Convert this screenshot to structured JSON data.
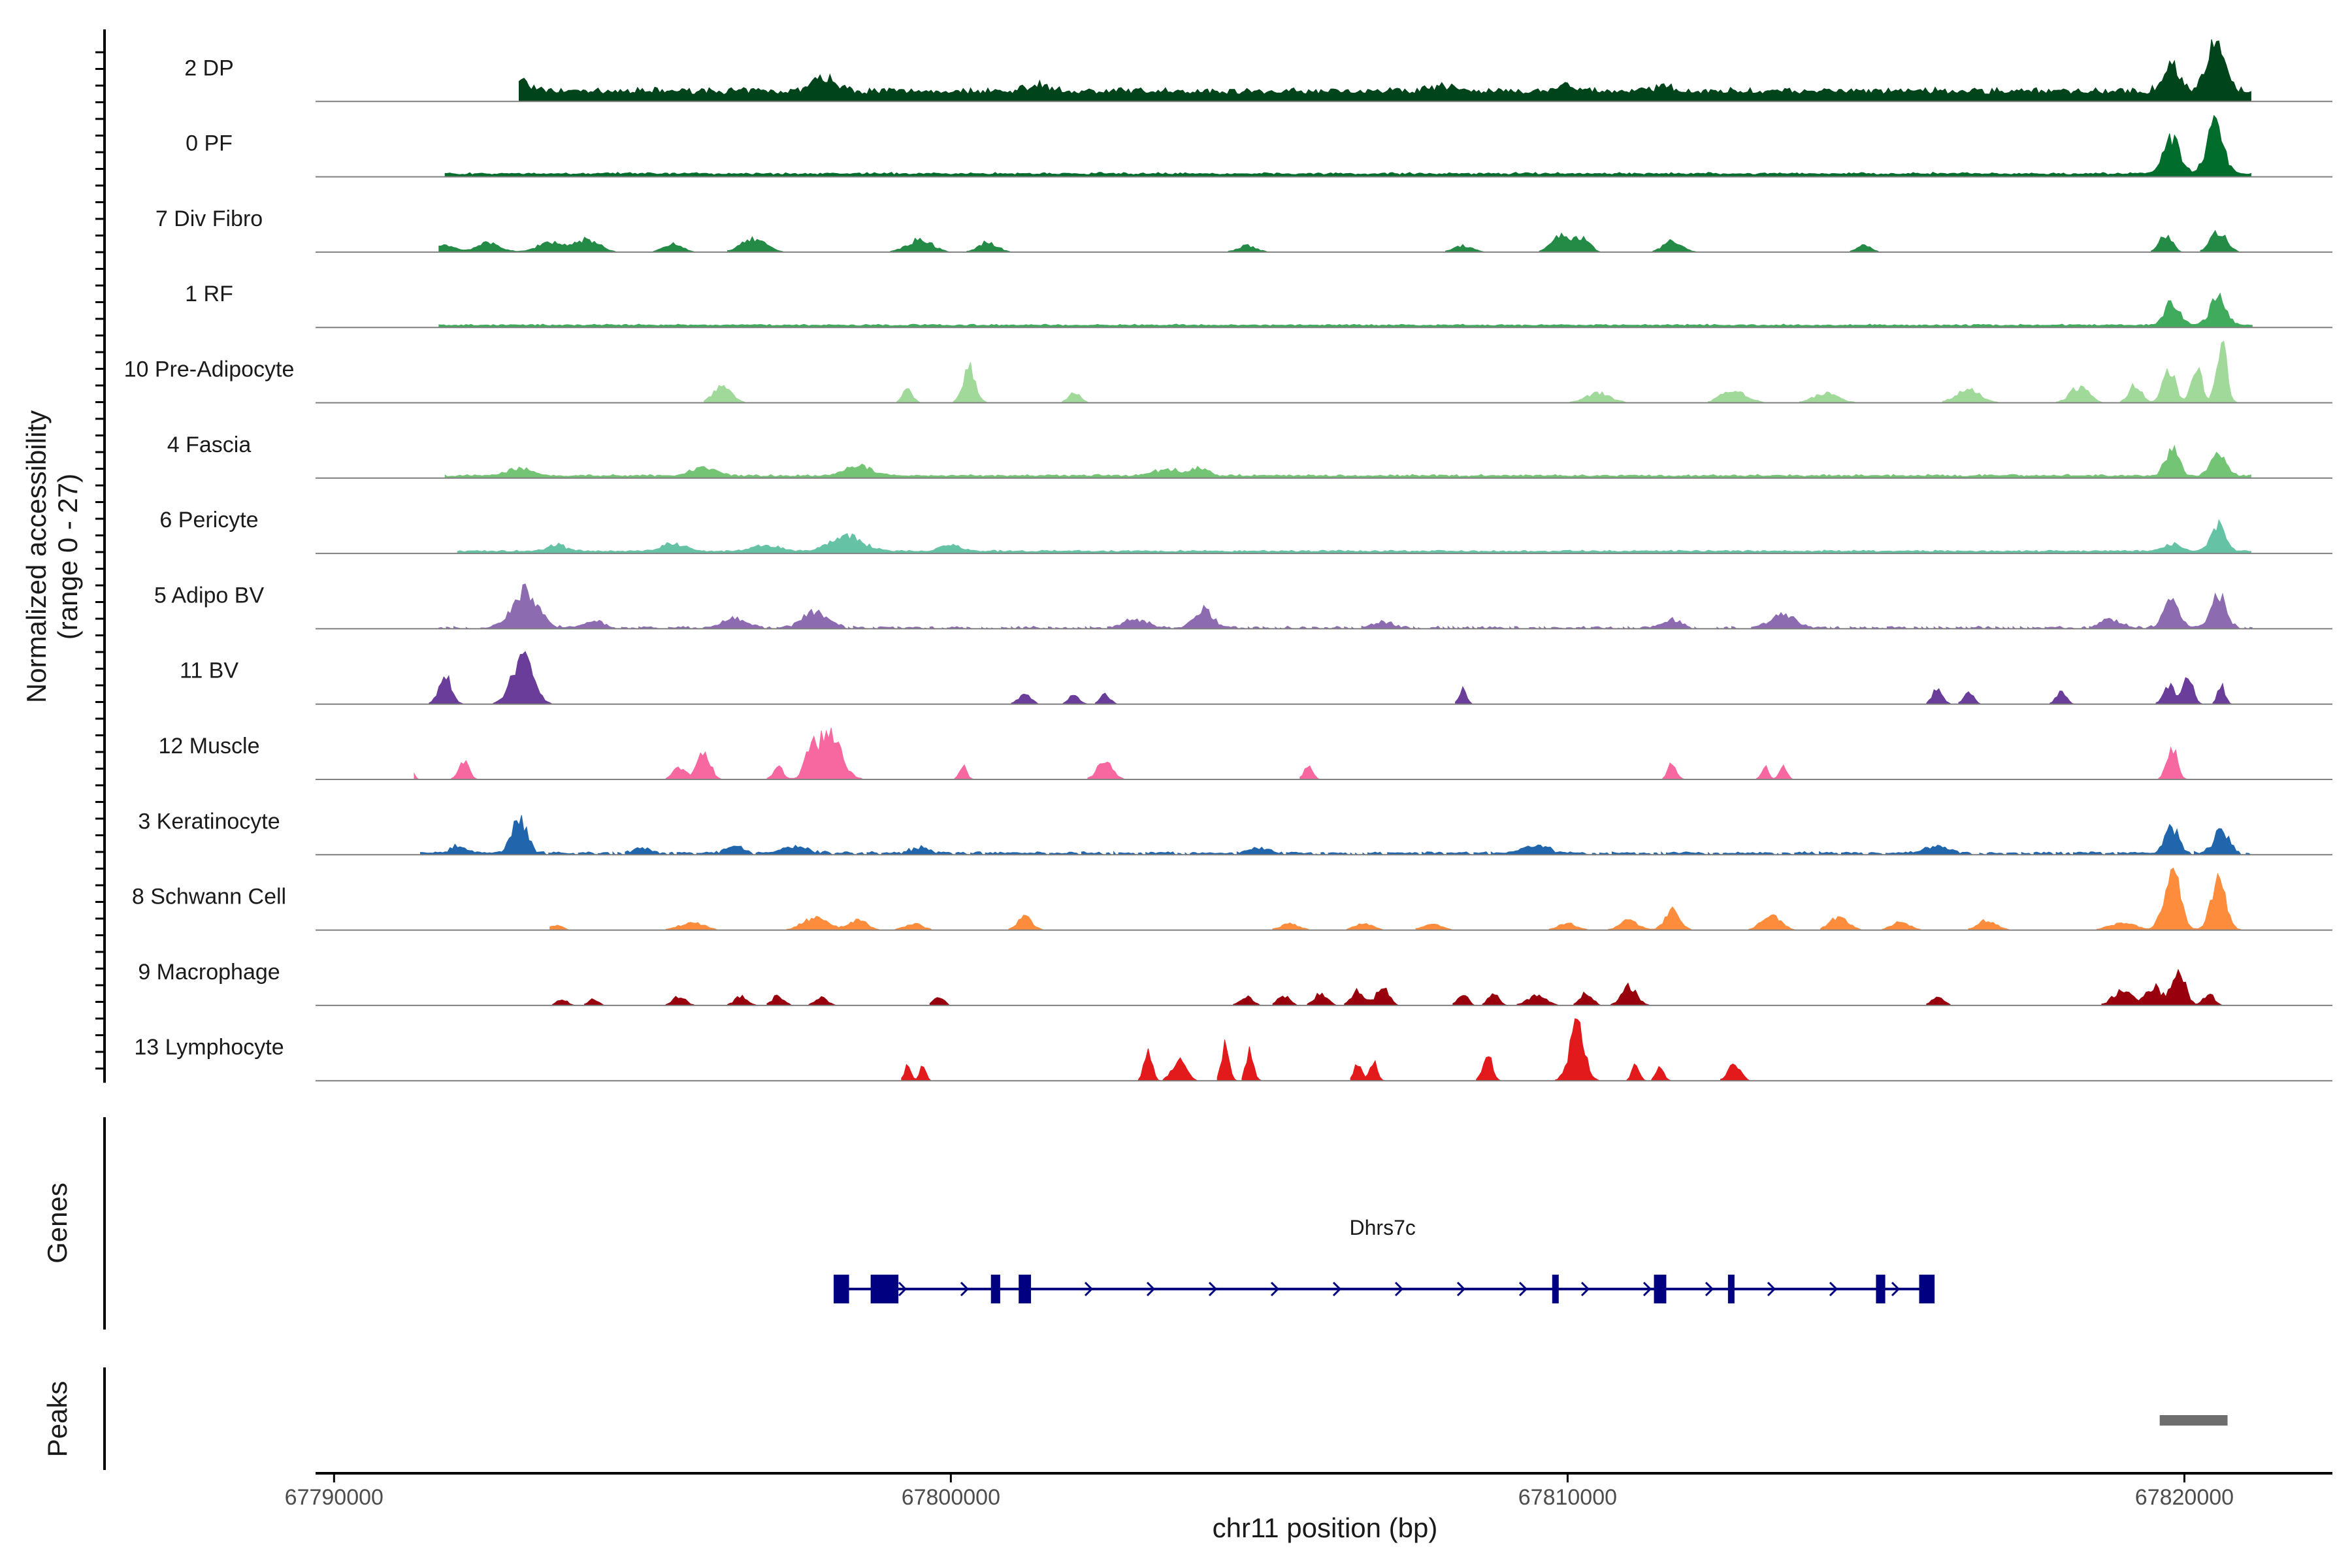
{
  "chart_data": {
    "type": "area",
    "chromosome": "chr11",
    "xlabel": "chr11 position (bp)",
    "ylabel_line1": "Normalized accessibility",
    "ylabel_line2": "(range 0 - 27)",
    "y_range": [
      0,
      27
    ],
    "xlim": [
      67789700,
      67822400
    ],
    "x_ticks": [
      67790000,
      67800000,
      67810000,
      67820000
    ],
    "x_tick_labels": [
      "67790000",
      "67800000",
      "67810000",
      "67820000"
    ],
    "tracks": [
      {
        "name": "2 DP",
        "color": "#00441b",
        "baseline": 0.15,
        "noise": 0.9,
        "span": [
          67793000,
          67821100
        ],
        "density": 1.0,
        "peaks": [
          [
            67793000,
            0.18,
            150
          ],
          [
            67797950,
            0.22,
            200
          ],
          [
            67801400,
            0.12,
            150
          ],
          [
            67808000,
            0.08,
            200
          ],
          [
            67810000,
            0.1,
            150
          ],
          [
            67811600,
            0.08,
            150
          ],
          [
            67819800,
            0.4,
            140
          ],
          [
            67820500,
            0.75,
            140
          ]
        ]
      },
      {
        "name": "0 PF",
        "color": "#006d2c",
        "baseline": 0.04,
        "noise": 0.5,
        "span": [
          67791800,
          67821100
        ],
        "density": 1.0,
        "peaks": [
          [
            67819800,
            0.55,
            130
          ],
          [
            67820500,
            0.8,
            130
          ]
        ]
      },
      {
        "name": "7 Div Fibro",
        "color": "#238b45",
        "baseline": 0.0,
        "noise": 0.0,
        "span": [
          67791700,
          67821000
        ],
        "density": 0.55,
        "peaks": [
          [
            67791800,
            0.12,
            150
          ],
          [
            67792500,
            0.14,
            200
          ],
          [
            67793500,
            0.16,
            200
          ],
          [
            67794100,
            0.2,
            200
          ],
          [
            67795500,
            0.14,
            150
          ],
          [
            67796800,
            0.2,
            200
          ],
          [
            67799500,
            0.2,
            200
          ],
          [
            67800600,
            0.16,
            150
          ],
          [
            67804800,
            0.1,
            150
          ],
          [
            67808300,
            0.1,
            150
          ],
          [
            67809900,
            0.28,
            150
          ],
          [
            67810250,
            0.2,
            120
          ],
          [
            67811700,
            0.18,
            150
          ],
          [
            67814800,
            0.1,
            120
          ],
          [
            67819700,
            0.28,
            100
          ],
          [
            67820550,
            0.32,
            130
          ]
        ]
      },
      {
        "name": "1 RF",
        "color": "#41ab5d",
        "baseline": 0.03,
        "noise": 0.4,
        "span": [
          67791700,
          67821100
        ],
        "density": 1.0,
        "peaks": [
          [
            67819800,
            0.38,
            120
          ],
          [
            67820550,
            0.42,
            130
          ]
        ]
      },
      {
        "name": "10 Pre-Adipocyte",
        "color": "#a1d99b",
        "baseline": 0.0,
        "noise": 0.0,
        "span": [
          67796000,
          67821100
        ],
        "density": 0.5,
        "peaks": [
          [
            67796300,
            0.25,
            150
          ],
          [
            67799300,
            0.2,
            80
          ],
          [
            67800300,
            0.55,
            100
          ],
          [
            67802000,
            0.15,
            100
          ],
          [
            67810500,
            0.15,
            200
          ],
          [
            67812700,
            0.2,
            200
          ],
          [
            67814200,
            0.15,
            200
          ],
          [
            67816500,
            0.2,
            200
          ],
          [
            67818300,
            0.25,
            150
          ],
          [
            67819200,
            0.3,
            100
          ],
          [
            67819750,
            0.55,
            100
          ],
          [
            67820200,
            0.6,
            80
          ],
          [
            67820600,
            1.0,
            80
          ]
        ]
      },
      {
        "name": "4 Fascia",
        "color": "#74c476",
        "baseline": 0.03,
        "noise": 0.5,
        "span": [
          67791800,
          67821100
        ],
        "density": 1.0,
        "peaks": [
          [
            67793000,
            0.12,
            200
          ],
          [
            67796000,
            0.12,
            200
          ],
          [
            67798500,
            0.16,
            200
          ],
          [
            67803500,
            0.1,
            200
          ],
          [
            67804000,
            0.12,
            150
          ],
          [
            67819800,
            0.42,
            110
          ],
          [
            67820550,
            0.35,
            120
          ]
        ]
      },
      {
        "name": "6 Pericyte",
        "color": "#66c2a4",
        "baseline": 0.03,
        "noise": 0.4,
        "span": [
          67792000,
          67821100
        ],
        "density": 1.0,
        "peaks": [
          [
            67793600,
            0.1,
            150
          ],
          [
            67795500,
            0.12,
            200
          ],
          [
            67797000,
            0.1,
            200
          ],
          [
            67798300,
            0.26,
            250
          ],
          [
            67800000,
            0.1,
            150
          ],
          [
            67819800,
            0.12,
            150
          ],
          [
            67820550,
            0.45,
            110
          ]
        ]
      },
      {
        "name": "5 Adipo BV",
        "color": "#8c6bb1",
        "baseline": 0.0,
        "noise": 0.9,
        "span": [
          67791700,
          67821100
        ],
        "density": 0.9,
        "peaks": [
          [
            67793100,
            0.6,
            200
          ],
          [
            67794200,
            0.12,
            150
          ],
          [
            67796500,
            0.15,
            200
          ],
          [
            67797800,
            0.25,
            200
          ],
          [
            67803000,
            0.12,
            200
          ],
          [
            67804100,
            0.28,
            150
          ],
          [
            67807000,
            0.1,
            150
          ],
          [
            67811700,
            0.12,
            150
          ],
          [
            67813500,
            0.2,
            200
          ],
          [
            67818800,
            0.15,
            150
          ],
          [
            67819800,
            0.45,
            120
          ],
          [
            67820550,
            0.5,
            120
          ]
        ]
      },
      {
        "name": "11 BV",
        "color": "#6a3d9a",
        "baseline": 0.0,
        "noise": 0.0,
        "span": [
          67791300,
          67821000
        ],
        "density": 0.0,
        "peaks": [
          [
            67791800,
            0.45,
            100
          ],
          [
            67793050,
            0.75,
            170
          ],
          [
            67801200,
            0.15,
            100
          ],
          [
            67802000,
            0.15,
            80
          ],
          [
            67802500,
            0.15,
            80
          ],
          [
            67808300,
            0.25,
            60
          ],
          [
            67816000,
            0.25,
            80
          ],
          [
            67816500,
            0.18,
            80
          ],
          [
            67818000,
            0.2,
            80
          ],
          [
            67819750,
            0.3,
            90
          ],
          [
            67820050,
            0.45,
            80
          ],
          [
            67820600,
            0.3,
            60
          ]
        ]
      },
      {
        "name": "12 Muscle",
        "color": "#f768a1",
        "baseline": 0.0,
        "noise": 0.0,
        "span": [
          67791300,
          67821000
        ],
        "density": 0.0,
        "peaks": [
          [
            67791300,
            0.08,
            30
          ],
          [
            67792100,
            0.3,
            80
          ],
          [
            67795600,
            0.2,
            100
          ],
          [
            67796000,
            0.45,
            100
          ],
          [
            67797200,
            0.2,
            80
          ],
          [
            67797700,
            0.3,
            70
          ],
          [
            67798000,
            0.75,
            200
          ],
          [
            67800200,
            0.2,
            60
          ],
          [
            67802500,
            0.3,
            120
          ],
          [
            67805800,
            0.25,
            70
          ],
          [
            67811700,
            0.25,
            70
          ],
          [
            67813200,
            0.2,
            60
          ],
          [
            67813500,
            0.2,
            60
          ],
          [
            67819800,
            0.55,
            80
          ]
        ]
      },
      {
        "name": "3 Keratinocyte",
        "color": "#2166ac",
        "baseline": 0.02,
        "noise": 0.6,
        "span": [
          67791400,
          67821100
        ],
        "density": 0.85,
        "peaks": [
          [
            67792000,
            0.1,
            150
          ],
          [
            67793000,
            0.55,
            120
          ],
          [
            67795000,
            0.08,
            150
          ],
          [
            67796500,
            0.1,
            150
          ],
          [
            67797500,
            0.1,
            200
          ],
          [
            67799500,
            0.1,
            150
          ],
          [
            67805000,
            0.08,
            200
          ],
          [
            67809500,
            0.12,
            200
          ],
          [
            67816000,
            0.1,
            200
          ],
          [
            67819800,
            0.4,
            110
          ],
          [
            67820600,
            0.4,
            120
          ]
        ]
      },
      {
        "name": "8 Schwann Cell",
        "color": "#fd8d3c",
        "baseline": 0.0,
        "noise": 0.0,
        "span": [
          67793500,
          67821100
        ],
        "density": 0.55,
        "peaks": [
          [
            67793600,
            0.08,
            100
          ],
          [
            67795800,
            0.12,
            200
          ],
          [
            67797800,
            0.2,
            200
          ],
          [
            67798500,
            0.15,
            150
          ],
          [
            67799400,
            0.1,
            150
          ],
          [
            67801200,
            0.2,
            120
          ],
          [
            67805500,
            0.1,
            150
          ],
          [
            67806700,
            0.1,
            150
          ],
          [
            67807800,
            0.1,
            150
          ],
          [
            67810000,
            0.1,
            150
          ],
          [
            67811000,
            0.15,
            150
          ],
          [
            67811700,
            0.3,
            120
          ],
          [
            67813300,
            0.25,
            150
          ],
          [
            67814400,
            0.2,
            150
          ],
          [
            67815400,
            0.12,
            150
          ],
          [
            67816800,
            0.15,
            150
          ],
          [
            67819000,
            0.12,
            200
          ],
          [
            67819800,
            0.95,
            130
          ],
          [
            67820550,
            0.75,
            120
          ]
        ]
      },
      {
        "name": "9 Macrophage",
        "color": "#99000d",
        "baseline": 0.0,
        "noise": 0.0,
        "span": [
          67793500,
          67821000
        ],
        "density": 0.5,
        "peaks": [
          [
            67793700,
            0.1,
            80
          ],
          [
            67794200,
            0.1,
            80
          ],
          [
            67795600,
            0.15,
            100
          ],
          [
            67796600,
            0.15,
            100
          ],
          [
            67797200,
            0.15,
            100
          ],
          [
            67797900,
            0.12,
            100
          ],
          [
            67799800,
            0.15,
            80
          ],
          [
            67804800,
            0.15,
            100
          ],
          [
            67805400,
            0.15,
            100
          ],
          [
            67806000,
            0.2,
            100
          ],
          [
            67806600,
            0.25,
            100
          ],
          [
            67807000,
            0.28,
            100
          ],
          [
            67808300,
            0.2,
            80
          ],
          [
            67808800,
            0.2,
            80
          ],
          [
            67809500,
            0.15,
            150
          ],
          [
            67810300,
            0.2,
            100
          ],
          [
            67811000,
            0.3,
            120
          ],
          [
            67816000,
            0.12,
            100
          ],
          [
            67819000,
            0.25,
            150
          ],
          [
            67819500,
            0.3,
            120
          ],
          [
            67819900,
            0.55,
            110
          ],
          [
            67820400,
            0.2,
            80
          ]
        ]
      },
      {
        "name": "13 Lymphocyte",
        "color": "#e31a1c",
        "baseline": 0.0,
        "noise": 0.0,
        "span": [
          67799000,
          67813000
        ],
        "density": 0.0,
        "peaks": [
          [
            67799300,
            0.25,
            50
          ],
          [
            67799550,
            0.25,
            50
          ],
          [
            67803200,
            0.55,
            60
          ],
          [
            67803700,
            0.35,
            110
          ],
          [
            67804450,
            0.55,
            60
          ],
          [
            67804850,
            0.5,
            60
          ],
          [
            67806600,
            0.3,
            60
          ],
          [
            67806850,
            0.3,
            60
          ],
          [
            67808700,
            0.5,
            70
          ],
          [
            67810150,
            0.85,
            120
          ],
          [
            67811100,
            0.25,
            60
          ],
          [
            67811500,
            0.25,
            60
          ],
          [
            67812700,
            0.25,
            100
          ]
        ]
      }
    ],
    "genes": [
      {
        "name": "Dhrs7c",
        "strand": "+",
        "start": 67798100,
        "end": 67815900,
        "exons": [
          [
            67798100,
            67798350
          ],
          [
            67798700,
            67799150
          ],
          [
            67800650,
            67800800
          ],
          [
            67801100,
            67801300
          ],
          [
            67809750,
            67809850
          ],
          [
            67811400,
            67811600
          ],
          [
            67812600,
            67812700
          ],
          [
            67815000,
            67815150
          ],
          [
            67815700,
            67815950
          ]
        ]
      }
    ],
    "peaks_track": [
      {
        "start": 67819600,
        "end": 67820700
      }
    ]
  },
  "panels": {
    "genes_label": "Genes",
    "peaks_label": "Peaks"
  },
  "colors": {
    "axis": "#000000",
    "baseline": "#7f7f7f",
    "gene": "#000080",
    "peak_bar": "#6e6e6e"
  }
}
